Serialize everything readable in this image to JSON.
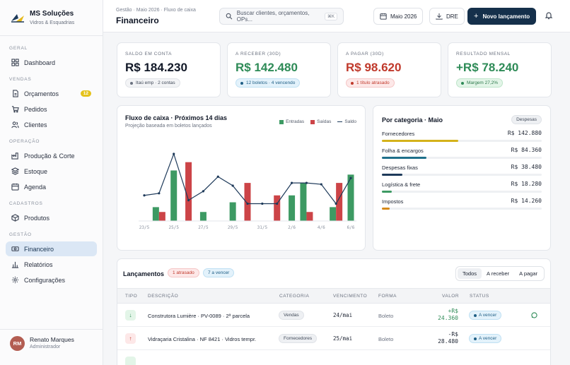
{
  "brand": {
    "name": "MS Soluções",
    "subtitle": "Vidros & Esquadrias"
  },
  "sidebar": {
    "groups": [
      {
        "label": "GERAL",
        "items": [
          {
            "label": "Dashboard",
            "icon": "grid-icon"
          }
        ]
      },
      {
        "label": "VENDAS",
        "items": [
          {
            "label": "Orçamentos",
            "icon": "document-icon",
            "badge": "12"
          },
          {
            "label": "Pedidos",
            "icon": "cart-icon"
          },
          {
            "label": "Clientes",
            "icon": "users-icon"
          }
        ]
      },
      {
        "label": "OPERAÇÃO",
        "items": [
          {
            "label": "Produção & Corte",
            "icon": "factory-icon"
          },
          {
            "label": "Estoque",
            "icon": "layers-icon"
          },
          {
            "label": "Agenda",
            "icon": "calendar-icon"
          }
        ]
      },
      {
        "label": "CADASTROS",
        "items": [
          {
            "label": "Produtos",
            "icon": "box-icon"
          }
        ]
      },
      {
        "label": "GESTÃO",
        "items": [
          {
            "label": "Financeiro",
            "icon": "cash-icon",
            "active": true
          },
          {
            "label": "Relatórios",
            "icon": "bar-chart-icon"
          },
          {
            "label": "Configurações",
            "icon": "gear-icon"
          }
        ]
      }
    ],
    "user": {
      "initials": "RM",
      "name": "Renato Marques",
      "role": "Administrador"
    }
  },
  "header": {
    "breadcrumb": "Gestão · Maio 2026 · Fluxo de caixa",
    "title": "Financeiro",
    "search_placeholder": "Buscar clientes, orçamentos, OPs...",
    "search_shortcut": "⌘K",
    "month_button": "Maio 2026",
    "dre_button": "DRE",
    "new_button": "Novo lançamento"
  },
  "kpis": [
    {
      "label": "SALDO EM CONTA",
      "value": "R$ 184.230",
      "color": "#111827",
      "chip": "Itaú emp · 2 contas",
      "chip_style": "neutral"
    },
    {
      "label": "A RECEBER (30D)",
      "value": "R$ 142.480",
      "color": "#2e8b57",
      "chip": "12 boletos · 4 vencendo",
      "chip_style": "blue"
    },
    {
      "label": "A PAGAR (30D)",
      "value": "R$ 98.620",
      "color": "#c0392b",
      "chip": "1 título atrasado",
      "chip_style": "red"
    },
    {
      "label": "RESULTADO MENSAL",
      "value": "+R$ 78.240",
      "color": "#2e8b57",
      "chip": "Margem 27,2%",
      "chip_style": "green"
    }
  ],
  "cashflow": {
    "title": "Fluxo de caixa · Próximos 14 dias",
    "subtitle": "Projeção baseada em boletos lançados",
    "legend": {
      "in": "Entradas",
      "out": "Saídas",
      "balance": "Saldo"
    },
    "colors": {
      "in": "#3d9a63",
      "out": "#cc4447",
      "balance": "#1e3a5a"
    }
  },
  "chart_data": {
    "type": "bar",
    "title": "Fluxo de caixa · Próximos 14 dias",
    "subtitle": "Projeção baseada em boletos lançados",
    "x_tick_labels": [
      "23/5",
      "25/5",
      "27/5",
      "29/5",
      "31/5",
      "2/6",
      "4/6",
      "6/6"
    ],
    "categories": [
      "23/5",
      "24/5",
      "25/5",
      "26/5",
      "27/5",
      "28/5",
      "29/5",
      "30/5",
      "31/5",
      "1/6",
      "2/6",
      "3/6",
      "4/6",
      "5/6",
      "6/6"
    ],
    "series": [
      {
        "name": "Entradas",
        "type": "bar",
        "values": [
          0,
          20,
          73,
          0,
          13,
          0,
          27,
          0,
          0,
          0,
          37,
          55,
          0,
          20,
          67
        ]
      },
      {
        "name": "Saídas",
        "type": "bar",
        "values": [
          0,
          13,
          0,
          85,
          0,
          0,
          0,
          55,
          0,
          37,
          0,
          13,
          0,
          55,
          0
        ]
      },
      {
        "name": "Saldo",
        "type": "line",
        "values": [
          37,
          40,
          97,
          30,
          43,
          64,
          51,
          25,
          25,
          25,
          55,
          55,
          53,
          25,
          62
        ]
      }
    ],
    "ylim": [
      0,
      100
    ],
    "grid": false,
    "legend": "top-right"
  },
  "categories_card": {
    "title": "Por categoria · Maio",
    "filter": "Despesas",
    "items": [
      {
        "name": "Fornecedores",
        "value": "R$ 142.880",
        "fraction": 0.48,
        "color": "#d4b21a"
      },
      {
        "name": "Folha & encargos",
        "value": "R$ 84.360",
        "fraction": 0.28,
        "color": "#1e6f8a"
      },
      {
        "name": "Despesas fixas",
        "value": "R$ 38.480",
        "fraction": 0.13,
        "color": "#1e3a5a"
      },
      {
        "name": "Logística & frete",
        "value": "R$ 18.280",
        "fraction": 0.06,
        "color": "#3d9a63"
      },
      {
        "name": "Impostos",
        "value": "R$ 14.260",
        "fraction": 0.05,
        "color": "#d68a1a"
      }
    ]
  },
  "lancamentos": {
    "title": "Lançamentos",
    "tag_overdue": "1 atrasado",
    "tag_due": "7 a vencer",
    "filters": [
      "Todos",
      "A receber",
      "A pagar"
    ],
    "columns": {
      "type": "TIPO",
      "desc": "DESCRIÇÃO",
      "cat": "CATEGORIA",
      "due": "VENCIMENTO",
      "method": "FORMA",
      "value": "VALOR",
      "status": "STATUS"
    },
    "rows": [
      {
        "dir": "in",
        "arrow": "↓",
        "desc": "Construtora Lumière · PV-0089 · 2ª parcela",
        "cat": "Vendas",
        "due": "24/mai",
        "method": "Boleto",
        "sign": "+R$",
        "amount": "24.360",
        "amount_color": "#2e8b57",
        "status": "A vencer"
      },
      {
        "dir": "out",
        "arrow": "↑",
        "desc": "Vidraçaria Cristalina · NF 8421 · Vidros tempr.",
        "cat": "Fornecedores",
        "due": "25/mai",
        "method": "Boleto",
        "sign": "-R$",
        "amount": "28.480",
        "amount_color": "#1d2433",
        "status": "A vencer"
      }
    ]
  }
}
